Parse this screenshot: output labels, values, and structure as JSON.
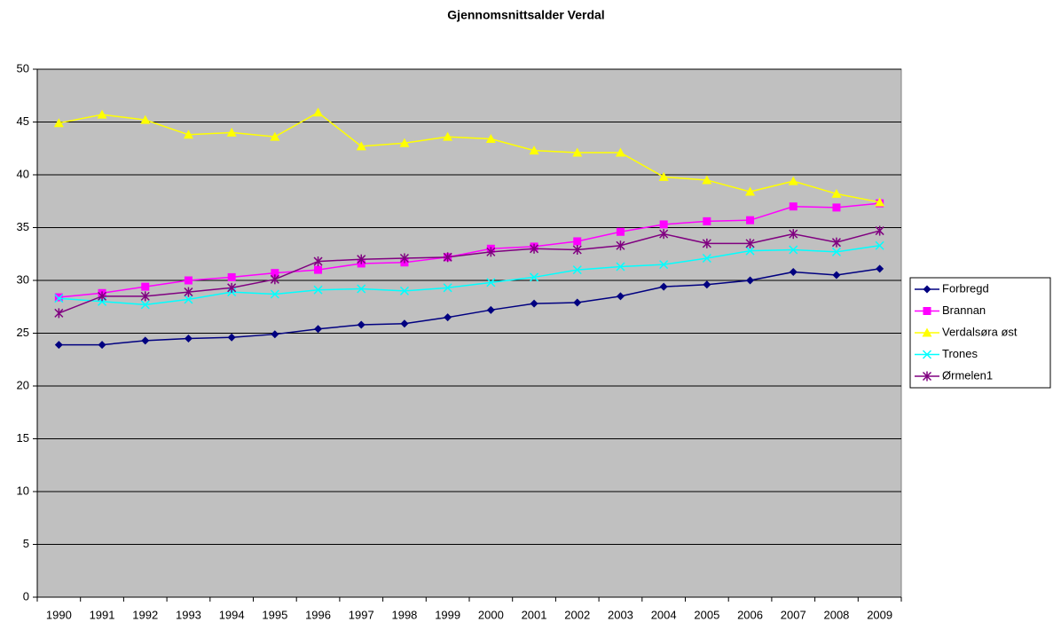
{
  "chart_data": {
    "type": "line",
    "title": "Gjennomsnittsalder Verdal",
    "categories": [
      "1990",
      "1991",
      "1992",
      "1993",
      "1994",
      "1995",
      "1996",
      "1997",
      "1998",
      "1999",
      "2000",
      "2001",
      "2002",
      "2003",
      "2004",
      "2005",
      "2006",
      "2007",
      "2008",
      "2009"
    ],
    "series": [
      {
        "name": "Forbregd",
        "color": "#000080",
        "marker": "diamond",
        "values": [
          23.9,
          23.9,
          24.3,
          24.5,
          24.6,
          24.9,
          25.4,
          25.8,
          25.9,
          26.5,
          27.2,
          27.8,
          27.9,
          28.5,
          29.4,
          29.6,
          30.0,
          30.8,
          30.5,
          31.1
        ]
      },
      {
        "name": "Brannan",
        "color": "#FF00FF",
        "marker": "square",
        "values": [
          28.4,
          28.8,
          29.4,
          30.0,
          30.3,
          30.7,
          31.0,
          31.6,
          31.7,
          32.2,
          33.0,
          33.2,
          33.7,
          34.6,
          35.3,
          35.6,
          35.7,
          37.0,
          36.9,
          37.3
        ]
      },
      {
        "name": "Verdalsøra øst",
        "color": "#FFFF00",
        "marker": "triangle",
        "values": [
          44.9,
          45.7,
          45.2,
          43.8,
          44.0,
          43.6,
          45.9,
          42.7,
          43.0,
          43.6,
          43.4,
          42.3,
          42.1,
          42.1,
          39.8,
          39.5,
          38.4,
          39.4,
          38.2,
          37.4
        ]
      },
      {
        "name": "Trones",
        "color": "#00FFFF",
        "marker": "x",
        "values": [
          28.3,
          28.0,
          27.7,
          28.2,
          28.9,
          28.7,
          29.1,
          29.2,
          29.0,
          29.3,
          29.8,
          30.3,
          31.0,
          31.3,
          31.5,
          32.1,
          32.8,
          32.9,
          32.7,
          33.3
        ]
      },
      {
        "name": "Ørmelen1",
        "color": "#800080",
        "marker": "star",
        "values": [
          26.9,
          28.5,
          28.5,
          28.9,
          29.3,
          30.1,
          31.8,
          32.0,
          32.1,
          32.2,
          32.7,
          33.0,
          32.9,
          33.3,
          34.4,
          33.5,
          33.5,
          34.4,
          33.6,
          34.7
        ]
      }
    ],
    "ylim": [
      0,
      50
    ],
    "yticks": [
      0,
      5,
      10,
      15,
      20,
      25,
      30,
      35,
      40,
      45,
      50
    ],
    "grid": true,
    "legend": "right"
  }
}
